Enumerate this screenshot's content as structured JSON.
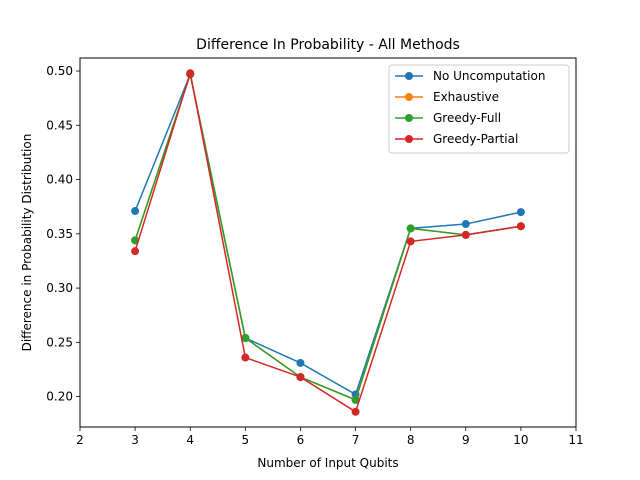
{
  "chart_data": {
    "type": "line",
    "title": "Difference In Probability - All Methods",
    "xlabel": "Number of Input Qubits",
    "ylabel": "Difference in Probability Distribution",
    "xlim": [
      2,
      11
    ],
    "ylim": [
      0.172,
      0.512
    ],
    "xticks": [
      2,
      3,
      4,
      5,
      6,
      7,
      8,
      9,
      10,
      11
    ],
    "yticks": [
      0.2,
      0.25,
      0.3,
      0.35,
      0.4,
      0.45,
      0.5
    ],
    "ytick_labels": [
      "0.20",
      "0.25",
      "0.30",
      "0.35",
      "0.40",
      "0.45",
      "0.50"
    ],
    "grid": false,
    "legend_position": "top-right",
    "x": [
      3,
      4,
      5,
      6,
      7,
      8,
      9,
      10
    ],
    "series": [
      {
        "name": "No Uncomputation",
        "color": "#1f77b4",
        "values": [
          0.371,
          0.497,
          0.254,
          0.231,
          0.202,
          0.355,
          0.359,
          0.37
        ]
      },
      {
        "name": "Exhaustive",
        "color": "#ff7f0e",
        "values": [
          0.344,
          0.497,
          0.254,
          0.218,
          0.197,
          0.355,
          0.349,
          0.357
        ]
      },
      {
        "name": "Greedy-Full",
        "color": "#2ca02c",
        "values": [
          0.344,
          0.497,
          0.254,
          0.218,
          0.197,
          0.355,
          0.349,
          0.357
        ]
      },
      {
        "name": "Greedy-Partial",
        "color": "#d62728",
        "values": [
          0.334,
          0.498,
          0.236,
          0.218,
          0.186,
          0.343,
          0.349,
          0.357
        ]
      }
    ]
  }
}
